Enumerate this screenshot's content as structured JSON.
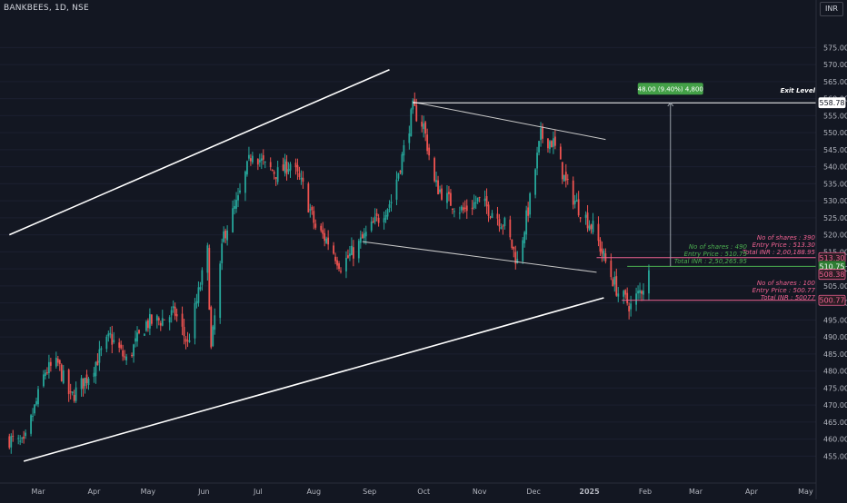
{
  "symbol_title": "BANKBEES, 1D, NSE",
  "currency_button": "INR",
  "colors": {
    "background": "#131722",
    "up": "#26a69a",
    "down": "#ef5350",
    "axis_text": "#b2b5be",
    "channel": "#ffffff",
    "pink": "#f06292",
    "green": "#4caf50"
  },
  "chart_data": {
    "type": "candlestick",
    "y_ticks": [
      455,
      460,
      465,
      470,
      475,
      480,
      485,
      490,
      495,
      500,
      505,
      510,
      515,
      520,
      525,
      530,
      535,
      540,
      545,
      550,
      555,
      560,
      565,
      570,
      575
    ],
    "ylim": [
      451.5,
      579.5
    ],
    "x_ticks": [
      "Mar",
      "Apr",
      "May",
      "Jun",
      "Jul",
      "Aug",
      "Sep",
      "Oct",
      "Nov",
      "Dec",
      "2025",
      "Feb",
      "Mar",
      "Apr",
      "May"
    ],
    "price_tags": [
      {
        "label": "558.78",
        "value": 558.78,
        "style": "white"
      },
      {
        "label": "513.30",
        "value": 513.3,
        "style": "pink"
      },
      {
        "label": "510.75",
        "value": 510.75,
        "style": "green"
      },
      {
        "label": "508.38",
        "value": 508.38,
        "style": "pink"
      },
      {
        "label": "500.77",
        "value": 500.77,
        "style": "pink"
      }
    ],
    "exit_label": "Exit Level",
    "target_label": "48.00 (9.40%) 4,800",
    "annotations": {
      "pink_top": [
        "No of shares : 390",
        "Entry Price : 513.30",
        "Total INR : 2,00,188.95"
      ],
      "green": [
        "No of shares : 490",
        "Entry Price : 510.75",
        "Total INR : 2,50,265.95"
      ],
      "pink_bottom": [
        "No of shares : 100",
        "Entry Price : 500.77",
        "Total INR : 50077"
      ]
    },
    "channel_lines": [
      {
        "from": [
          "2024-02-14",
          520.0
        ],
        "to": [
          "2024-09-12",
          568.5
        ]
      },
      {
        "from": [
          "2024-02-22",
          453.5
        ],
        "to": [
          "2025-01-09",
          501.5
        ]
      }
    ],
    "wedge_lines": [
      {
        "from": [
          "2024-09-25",
          559.0
        ],
        "to": [
          "2025-01-10",
          548.0
        ]
      },
      {
        "from": [
          "2024-08-28",
          518.0
        ],
        "to": [
          "2025-01-05",
          509.0
        ]
      }
    ],
    "levels": [
      {
        "value": 558.78,
        "from": "2024-09-25"
      },
      {
        "value": 510.75,
        "from": "2025-01-22"
      },
      {
        "value": 513.3,
        "from": "2025-01-05"
      },
      {
        "value": 500.77,
        "from": "2025-01-19"
      }
    ],
    "ohlc_anchors": [
      [
        "2024-02-14",
        460
      ],
      [
        "2024-02-22",
        458
      ],
      [
        "2024-03-05",
        480
      ],
      [
        "2024-03-12",
        482
      ],
      [
        "2024-03-19",
        472
      ],
      [
        "2024-03-28",
        478
      ],
      [
        "2024-04-10",
        490
      ],
      [
        "2024-04-19",
        483
      ],
      [
        "2024-04-30",
        494
      ],
      [
        "2024-05-08",
        495
      ],
      [
        "2024-05-16",
        497
      ],
      [
        "2024-05-23",
        488
      ],
      [
        "2024-06-03",
        515
      ],
      [
        "2024-06-05",
        486
      ],
      [
        "2024-06-12",
        520
      ],
      [
        "2024-06-20",
        530
      ],
      [
        "2024-06-28",
        545
      ],
      [
        "2024-07-05",
        540
      ],
      [
        "2024-07-12",
        538
      ],
      [
        "2024-07-19",
        541
      ],
      [
        "2024-07-26",
        534
      ],
      [
        "2024-08-02",
        522
      ],
      [
        "2024-08-09",
        518
      ],
      [
        "2024-08-16",
        511
      ],
      [
        "2024-08-23",
        515
      ],
      [
        "2024-08-30",
        520
      ],
      [
        "2024-09-06",
        525
      ],
      [
        "2024-09-13",
        530
      ],
      [
        "2024-09-20",
        545
      ],
      [
        "2024-09-25",
        557
      ],
      [
        "2024-10-01",
        552
      ],
      [
        "2024-10-07",
        535
      ],
      [
        "2024-10-15",
        530
      ],
      [
        "2024-10-23",
        527
      ],
      [
        "2024-10-31",
        530
      ],
      [
        "2024-11-08",
        527
      ],
      [
        "2024-11-15",
        523
      ],
      [
        "2024-11-22",
        512
      ],
      [
        "2024-11-29",
        530
      ],
      [
        "2024-12-05",
        549
      ],
      [
        "2024-12-12",
        547
      ],
      [
        "2024-12-19",
        535
      ],
      [
        "2024-12-26",
        528
      ],
      [
        "2025-01-03",
        522
      ],
      [
        "2025-01-10",
        512
      ],
      [
        "2025-01-17",
        503
      ],
      [
        "2025-01-24",
        499
      ],
      [
        "2025-01-31",
        505
      ],
      [
        "2025-02-03",
        508.38
      ]
    ]
  }
}
